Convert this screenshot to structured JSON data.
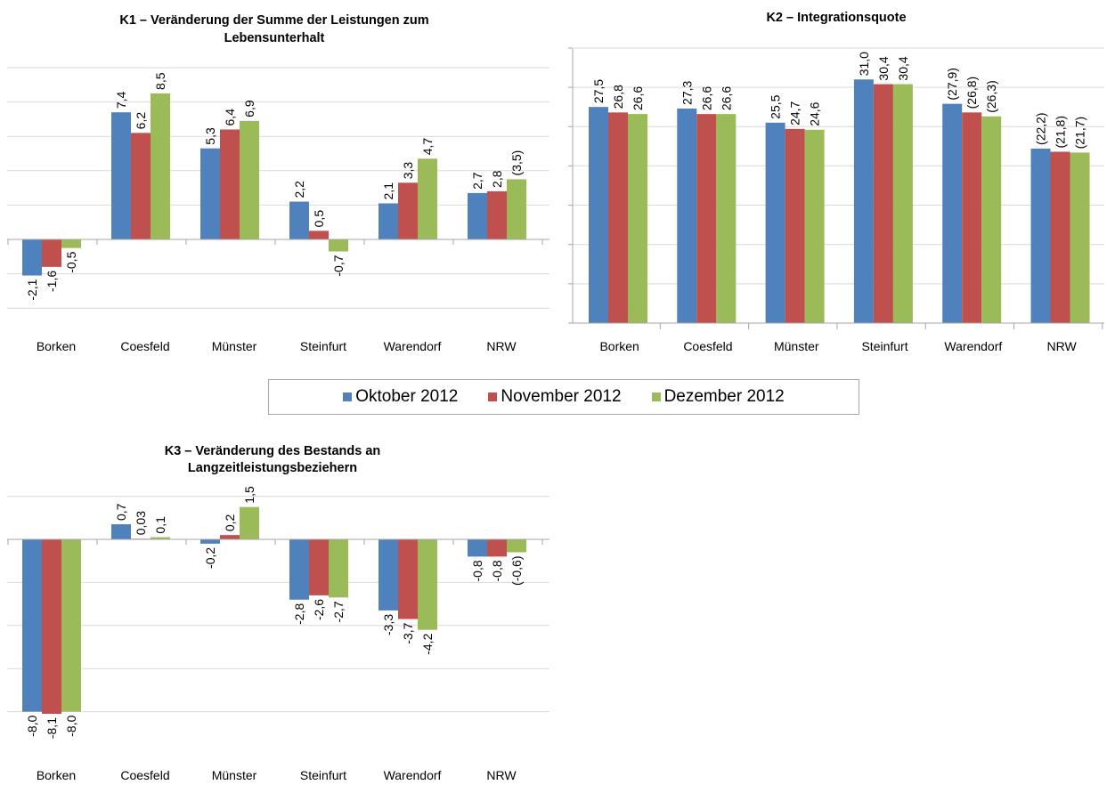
{
  "categories": [
    "Borken",
    "Coesfeld",
    "Münster",
    "Steinfurt",
    "Warendorf",
    "NRW"
  ],
  "colors": {
    "Oktober 2012": "#4f81bd",
    "November 2012": "#c0504d",
    "Dezember 2012": "#9bbb59"
  },
  "legend": [
    "Oktober 2012",
    "November 2012",
    "Dezember 2012"
  ],
  "chart_data": [
    {
      "id": "k1",
      "type": "bar",
      "title": "K1 – Veränderung der Summe der Leistungen zum Lebensunterhalt",
      "title_lines": [
        "K1 – Veränderung der Summe der Leistungen zum",
        "Lebensunterhalt"
      ],
      "categories": [
        "Borken",
        "Coesfeld",
        "Münster",
        "Steinfurt",
        "Warendorf",
        "NRW"
      ],
      "ylim": [
        -4,
        10
      ],
      "gridlines": [
        -4,
        -2,
        0,
        2,
        4,
        6,
        8,
        10
      ],
      "series": [
        {
          "name": "Oktober 2012",
          "values": [
            -2.1,
            7.4,
            5.3,
            2.2,
            2.1,
            2.7
          ],
          "labels": [
            "-2,1",
            "7,4",
            "5,3",
            "2,2",
            "2,1",
            "2,7"
          ]
        },
        {
          "name": "November 2012",
          "values": [
            -1.6,
            6.2,
            6.4,
            0.5,
            3.3,
            2.8
          ],
          "labels": [
            "-1,6",
            "6,2",
            "6,4",
            "0,5",
            "3,3",
            "2,8"
          ]
        },
        {
          "name": "Dezember 2012",
          "values": [
            -0.5,
            8.5,
            6.9,
            -0.7,
            4.7,
            3.5
          ],
          "labels": [
            "-0,5",
            "8,5",
            "6,9",
            "-0,7",
            "4,7",
            "(3,5)"
          ]
        }
      ]
    },
    {
      "id": "k2",
      "type": "bar",
      "title": "K2 – Integrationsquote",
      "title_lines": [
        "K2 – Integrationsquote"
      ],
      "categories": [
        "Borken",
        "Coesfeld",
        "Münster",
        "Steinfurt",
        "Warendorf",
        "NRW"
      ],
      "ylim": [
        0,
        35
      ],
      "gridlines": [
        0,
        5,
        10,
        15,
        20,
        25,
        30,
        35
      ],
      "series": [
        {
          "name": "Oktober 2012",
          "values": [
            27.5,
            27.3,
            25.5,
            31.0,
            27.9,
            22.2
          ],
          "labels": [
            "27,5",
            "27,3",
            "25,5",
            "31,0",
            "(27,9)",
            "(22,2)"
          ]
        },
        {
          "name": "November 2012",
          "values": [
            26.8,
            26.6,
            24.7,
            30.4,
            26.8,
            21.8
          ],
          "labels": [
            "26,8",
            "26,6",
            "24,7",
            "30,4",
            "(26,8)",
            "(21,8)"
          ]
        },
        {
          "name": "Dezember 2012",
          "values": [
            26.6,
            26.6,
            24.6,
            30.4,
            26.3,
            21.7
          ],
          "labels": [
            "26,6",
            "26,6",
            "24,6",
            "30,4",
            "(26,3)",
            "(21,7)"
          ]
        }
      ]
    },
    {
      "id": "k3",
      "type": "bar",
      "title": "K3 – Veränderung des Bestands an Langzeitleistungsbeziehern",
      "title_lines": [
        "K3 – Veränderung des Bestands an",
        "Langzeitleistungsbeziehern"
      ],
      "categories": [
        "Borken",
        "Coesfeld",
        "Münster",
        "Steinfurt",
        "Warendorf",
        "NRW"
      ],
      "ylim": [
        -8,
        2
      ],
      "gridlines": [
        -8,
        -6,
        -4,
        -2,
        0,
        2
      ],
      "series": [
        {
          "name": "Oktober 2012",
          "values": [
            -8.0,
            0.7,
            -0.2,
            -2.8,
            -3.3,
            -0.8
          ],
          "labels": [
            "-8,0",
            "0,7",
            "-0,2",
            "-2,8",
            "-3,3",
            "-0,8"
          ]
        },
        {
          "name": "November 2012",
          "values": [
            -8.1,
            0.03,
            0.2,
            -2.6,
            -3.7,
            -0.8
          ],
          "labels": [
            "-8,1",
            "0,03",
            "0,2",
            "-2,6",
            "-3,7",
            "-0,8"
          ]
        },
        {
          "name": "Dezember 2012",
          "values": [
            -8.0,
            0.1,
            1.5,
            -2.7,
            -4.2,
            -0.6
          ],
          "labels": [
            "-8,0",
            "0,1",
            "1,5",
            "-2,7",
            "-4,2",
            "(-0,6)"
          ]
        }
      ]
    }
  ]
}
